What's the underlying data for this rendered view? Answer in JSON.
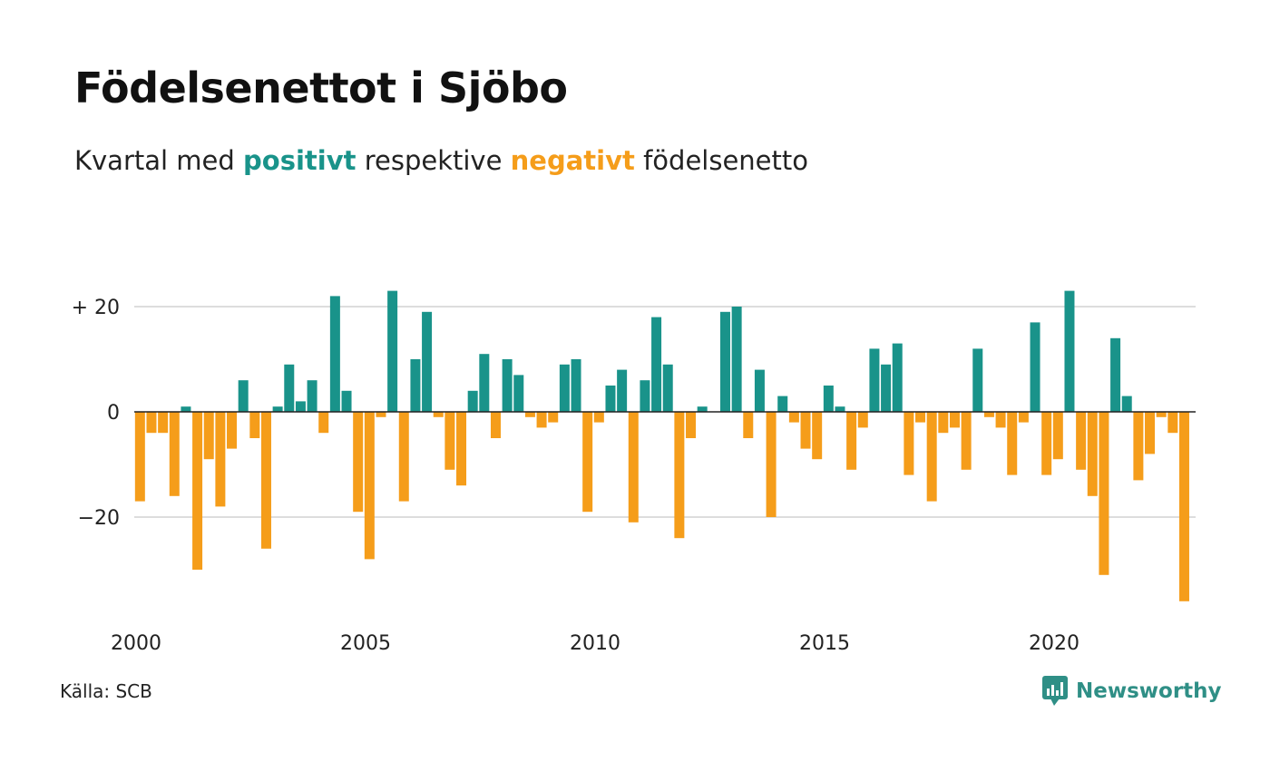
{
  "title": "Födelsenettot i Sjöbo",
  "subtitle": {
    "before": "Kvartal med",
    "positive_word": "positivt",
    "middle": "respektive",
    "negative_word": "negativt",
    "after": "födelsenetto"
  },
  "source": "Källa: SCB",
  "brand": "Newsworthy",
  "colors": {
    "positive": "#19938a",
    "negative": "#f59d1a",
    "grid": "#dddddd",
    "zero_line": "#222222"
  },
  "chart_data": {
    "type": "bar",
    "x_start": {
      "year": 2000,
      "quarter": 1
    },
    "period": "quarter",
    "values": [
      -17,
      -4,
      -4,
      -16,
      1,
      -30,
      -9,
      -18,
      -7,
      6,
      -5,
      -26,
      1,
      9,
      2,
      6,
      -4,
      22,
      4,
      -19,
      -28,
      -1,
      23,
      -17,
      10,
      19,
      -1,
      -11,
      -14,
      4,
      11,
      -5,
      10,
      7,
      -1,
      -3,
      -2,
      9,
      10,
      -19,
      -2,
      5,
      8,
      -21,
      6,
      18,
      9,
      -24,
      -5,
      1,
      0,
      19,
      20,
      -5,
      8,
      -20,
      3,
      -2,
      -7,
      -9,
      5,
      1,
      -11,
      -3,
      12,
      9,
      13,
      -12,
      -2,
      -17,
      -4,
      -3,
      -11,
      12,
      -1,
      -3,
      -12,
      -2,
      17,
      -12,
      -9,
      23,
      -11,
      -16,
      -31,
      14,
      3,
      -13,
      -8,
      -1,
      -4,
      -36
    ],
    "x_ticks": [
      "2000",
      "2005",
      "2010",
      "2015",
      "2020"
    ],
    "y_ticks": [
      {
        "value": 20,
        "label": "+ 20"
      },
      {
        "value": 0,
        "label": "0"
      },
      {
        "value": -20,
        "label": "−20"
      }
    ],
    "ylim": [
      -37,
      24
    ],
    "grid": true,
    "xlabel": "",
    "ylabel": ""
  }
}
